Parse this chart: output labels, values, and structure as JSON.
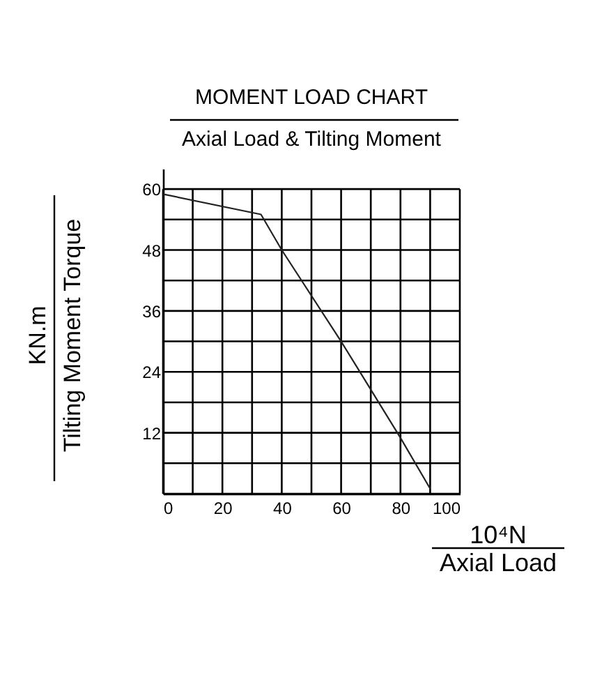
{
  "chart_data": {
    "type": "line",
    "title": "MOMENT LOAD CHART",
    "subtitle": "Axial Load & Tilting Moment",
    "xlabel": "10⁴N\nAxial Load",
    "ylabel": "KN.m\nTilting Moment Torque",
    "x": [
      0,
      33,
      40,
      60,
      80,
      90
    ],
    "series": [
      {
        "color": "#222222",
        "values": [
          59,
          55,
          48,
          30,
          11,
          1
        ]
      }
    ],
    "xlim": [
      0,
      100
    ],
    "xticks": [
      0,
      {
        "value": 10,
        "label": null
      },
      20,
      {
        "value": 30,
        "label": null
      },
      40,
      {
        "value": 50,
        "label": null
      },
      60,
      {
        "value": 70,
        "label": null
      },
      80,
      {
        "value": 90,
        "label": null
      },
      100
    ],
    "ylim": [
      0,
      64
    ],
    "yticks": [
      {
        "value": 0,
        "label": null
      },
      {
        "value": 6,
        "label": null
      },
      12,
      {
        "value": 18,
        "label": null
      },
      24,
      {
        "value": 30,
        "label": null
      },
      36,
      {
        "value": 42,
        "label": null
      },
      48,
      {
        "value": 54,
        "label": null
      },
      60
    ],
    "grid": true
  }
}
